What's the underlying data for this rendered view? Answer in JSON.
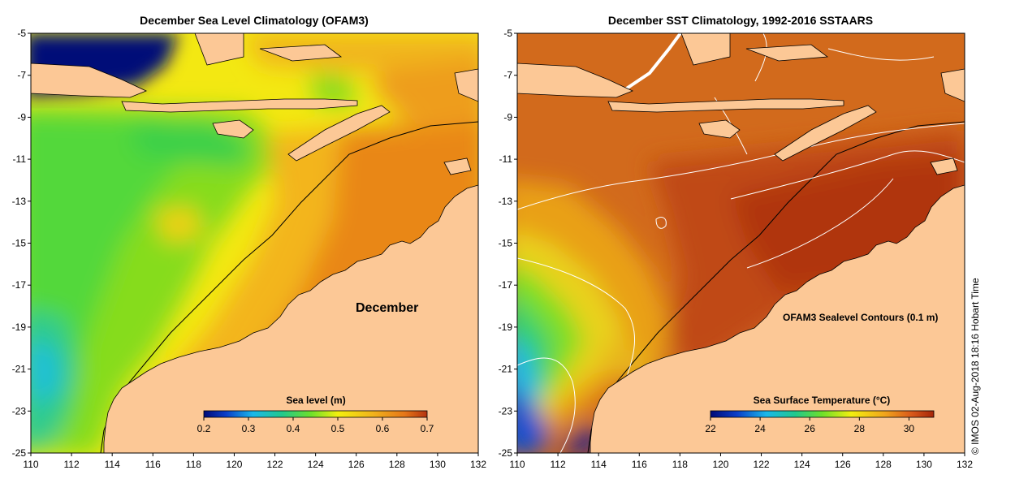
{
  "credit": "©  IMOS 02-Aug-2018 18:16 Hobart Time",
  "chart_data": [
    {
      "type": "heatmap",
      "title": "December Sea Level Climatology (OFAM3)",
      "xlim": [
        110,
        132
      ],
      "ylim": [
        -25,
        -5
      ],
      "xticks": [
        110,
        112,
        114,
        116,
        118,
        120,
        122,
        124,
        126,
        128,
        130,
        132
      ],
      "yticks": [
        -5,
        -7,
        -9,
        -11,
        -13,
        -15,
        -17,
        -19,
        -21,
        -23,
        -25
      ],
      "annotation": "December",
      "colorbar": {
        "label": "Sea level (m)",
        "range": [
          0.2,
          0.7
        ],
        "ticks": [
          0.2,
          0.3,
          0.4,
          0.5,
          0.6,
          0.7
        ],
        "tick_labels": [
          "0.2",
          "0.3",
          "0.4",
          "0.5",
          "0.6",
          "0.7"
        ]
      },
      "field_samples": [
        {
          "lon": 112,
          "lat": -6,
          "value": 0.2
        },
        {
          "lon": 114,
          "lat": -10,
          "value": 0.44
        },
        {
          "lon": 112,
          "lat": -21,
          "value": 0.37
        },
        {
          "lon": 117,
          "lat": -14,
          "value": 0.53
        },
        {
          "lon": 121,
          "lat": -8,
          "value": 0.55
        },
        {
          "lon": 127,
          "lat": -12,
          "value": 0.62
        },
        {
          "lon": 129,
          "lat": -6,
          "value": 0.63
        }
      ]
    },
    {
      "type": "heatmap",
      "title": "December SST Climatology, 1992-2016 SSTAARS",
      "xlim": [
        110,
        132
      ],
      "ylim": [
        -25,
        -5
      ],
      "xticks": [
        110,
        112,
        114,
        116,
        118,
        120,
        122,
        124,
        126,
        128,
        130,
        132
      ],
      "yticks": [
        -5,
        -7,
        -9,
        -11,
        -13,
        -15,
        -17,
        -19,
        -21,
        -23,
        -25
      ],
      "annotation": "OFAM3 Sealevel Contours (0.1 m)",
      "colorbar": {
        "label": "Sea Surface Temperature (°C)",
        "range": [
          22,
          31
        ],
        "ticks": [
          22,
          24,
          26,
          28,
          30
        ],
        "tick_labels": [
          "22",
          "24",
          "26",
          "28",
          "30"
        ]
      },
      "field_samples": [
        {
          "lon": 111,
          "lat": -23,
          "value": 24
        },
        {
          "lon": 113,
          "lat": -19,
          "value": 26.5
        },
        {
          "lon": 116,
          "lat": -15,
          "value": 28.5
        },
        {
          "lon": 122,
          "lat": -10,
          "value": 29.5
        },
        {
          "lon": 129,
          "lat": -14,
          "value": 30.5
        }
      ]
    }
  ]
}
